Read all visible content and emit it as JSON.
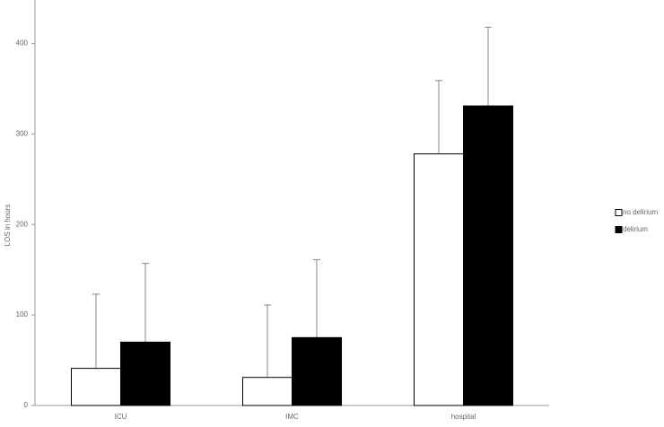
{
  "chart_data": {
    "type": "bar",
    "y_label": "LOS in hours",
    "categories": [
      "ICU",
      "IMC",
      "hospital"
    ],
    "series": [
      {
        "name": "no delirium",
        "color": "#ffffff",
        "values": [
          41,
          31,
          278
        ],
        "errors": [
          82,
          80,
          81
        ]
      },
      {
        "name": "delirium",
        "color": "#000000",
        "values": [
          70,
          75,
          331
        ],
        "errors": [
          87,
          86,
          87
        ]
      }
    ],
    "ylim": [
      0,
      450
    ],
    "yticks": [
      0,
      100,
      200,
      300,
      400
    ],
    "legend": "right"
  }
}
